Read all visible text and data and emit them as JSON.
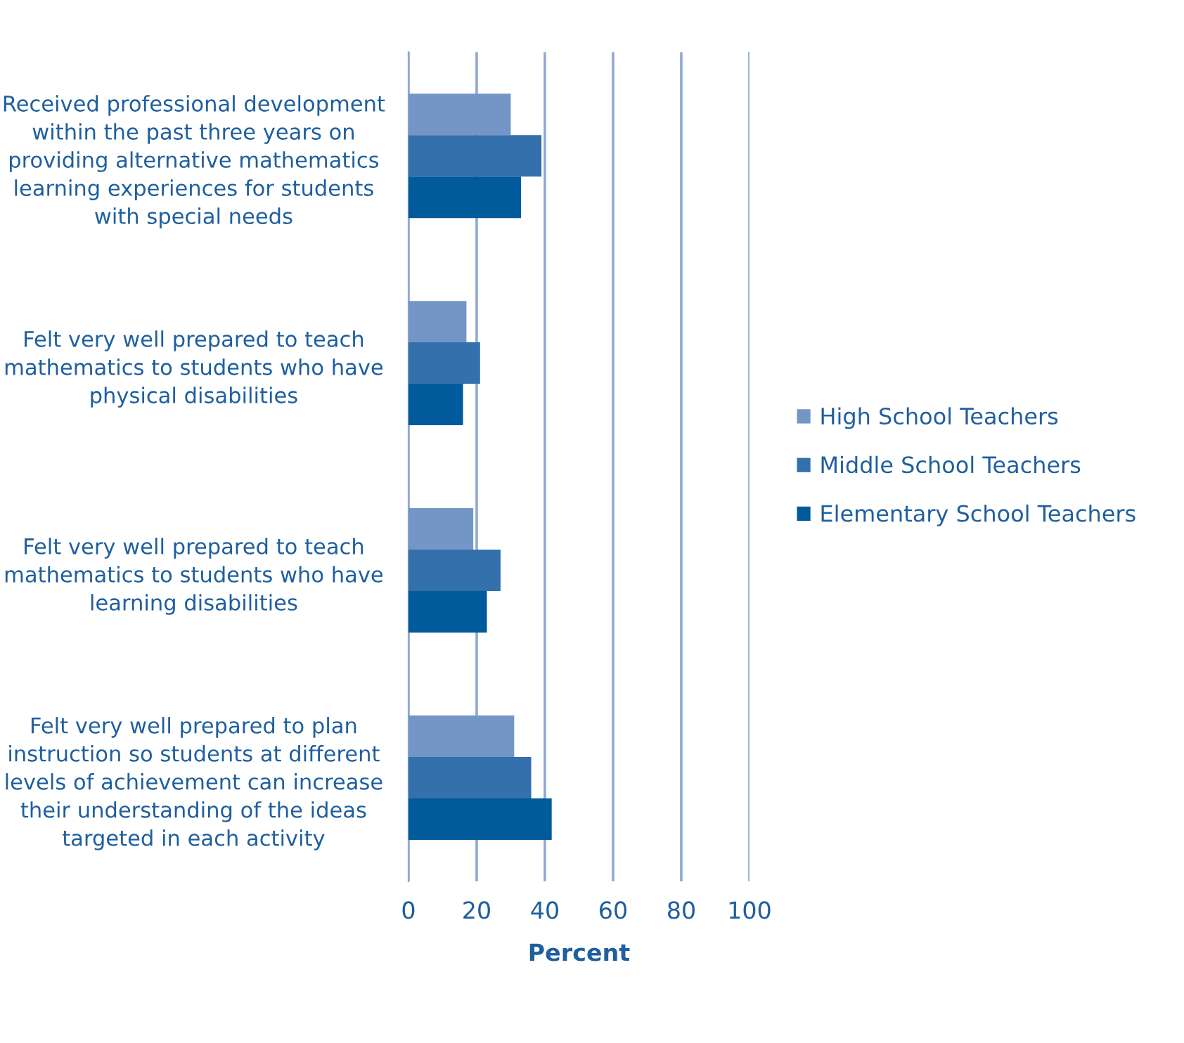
{
  "chart_data": {
    "type": "bar",
    "orientation": "horizontal",
    "xlabel": "Percent",
    "categories": [
      "Received professional development within the past three years on providing alternative mathematics learning experiences for students with special needs",
      "Felt very well prepared to teach mathematics to students who have physical disabilities",
      "Felt very well prepared to teach mathematics to students who have learning disabilities",
      "Felt very well prepared to plan instruction so students at different levels of achievement can increase their understanding of the ideas targeted in each activity"
    ],
    "series": [
      {
        "name": "High School Teachers",
        "color": "#7396c6",
        "values": [
          30,
          17,
          19,
          31
        ]
      },
      {
        "name": "Middle School Teachers",
        "color": "#3370ac",
        "values": [
          39,
          21,
          27,
          36
        ]
      },
      {
        "name": "Elementary School Teachers",
        "color": "#005a9c",
        "values": [
          33,
          16,
          23,
          42
        ]
      }
    ],
    "xlim": [
      0,
      100
    ],
    "xticks": [
      0,
      20,
      40,
      60,
      80,
      100
    ],
    "grid": "x",
    "legend": "right"
  }
}
